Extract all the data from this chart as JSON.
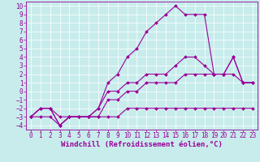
{
  "xlabel": "Windchill (Refroidissement éolien,°C)",
  "bg_color": "#c8ecec",
  "line_color": "#990099",
  "grid_color": "#ffffff",
  "xlim": [
    -0.5,
    23.5
  ],
  "ylim": [
    -4.5,
    10.5
  ],
  "xticks": [
    0,
    1,
    2,
    3,
    4,
    5,
    6,
    7,
    8,
    9,
    10,
    11,
    12,
    13,
    14,
    15,
    16,
    17,
    18,
    19,
    20,
    21,
    22,
    23
  ],
  "yticks": [
    -4,
    -3,
    -2,
    -1,
    0,
    1,
    2,
    3,
    4,
    5,
    6,
    7,
    8,
    9,
    10
  ],
  "line1_x": [
    0,
    1,
    2,
    3,
    4,
    5,
    6,
    7,
    8,
    9,
    10,
    11,
    12,
    13,
    14,
    15,
    16,
    17,
    18,
    19,
    20,
    21,
    22,
    23
  ],
  "line1_y": [
    -3,
    -3,
    -3,
    -4,
    -3,
    -3,
    -3,
    -3,
    -3,
    -3,
    -2,
    -2,
    -2,
    -2,
    -2,
    -2,
    -2,
    -2,
    -2,
    -2,
    -2,
    -2,
    -2,
    -2
  ],
  "line2_x": [
    0,
    1,
    2,
    3,
    4,
    5,
    6,
    7,
    8,
    9,
    10,
    11,
    12,
    13,
    14,
    15,
    16,
    17,
    18,
    19,
    20,
    21,
    22,
    23
  ],
  "line2_y": [
    -3,
    -2,
    -2,
    -3,
    -3,
    -3,
    -3,
    -3,
    -1,
    -1,
    0,
    0,
    1,
    1,
    1,
    1,
    2,
    2,
    2,
    2,
    2,
    2,
    1,
    1
  ],
  "line3_x": [
    0,
    1,
    2,
    3,
    4,
    5,
    6,
    7,
    8,
    9,
    10,
    11,
    12,
    13,
    14,
    15,
    16,
    17,
    18,
    19,
    20,
    21,
    22,
    23
  ],
  "line3_y": [
    -3,
    -2,
    -2,
    -4,
    -3,
    -3,
    -3,
    -2,
    0,
    0,
    1,
    1,
    2,
    2,
    2,
    3,
    4,
    4,
    3,
    2,
    2,
    4,
    1,
    1
  ],
  "line4_x": [
    0,
    1,
    2,
    3,
    4,
    5,
    6,
    7,
    8,
    9,
    10,
    11,
    12,
    13,
    14,
    15,
    16,
    17,
    18,
    19,
    20,
    21,
    22,
    23
  ],
  "line4_y": [
    -3,
    -2,
    -2,
    -4,
    -3,
    -3,
    -3,
    -2,
    1,
    2,
    4,
    5,
    7,
    8,
    9,
    10,
    9,
    9,
    9,
    2,
    2,
    4,
    1,
    1
  ],
  "marker": "D",
  "markersize": 2.0,
  "linewidth": 0.8,
  "xlabel_fontsize": 6.5,
  "tick_fontsize": 5.5,
  "xlabel_color": "#990099",
  "tick_color": "#990099",
  "axis_color": "#990099",
  "figwidth": 3.2,
  "figheight": 2.0,
  "dpi": 100
}
